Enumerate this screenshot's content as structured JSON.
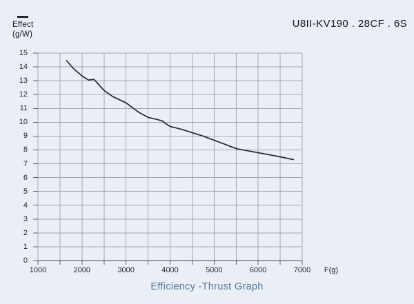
{
  "header": {
    "title": "U8II-KV190 . 28CF . 6S"
  },
  "legend": {
    "label": "Effect",
    "unit": "(g/W)"
  },
  "caption": {
    "text": "Efficiency -Thrust Graph"
  },
  "colors": {
    "background": "#eaeef5",
    "grid": "#a0a8b6",
    "axis": "#41454d",
    "tick": "#5a616c",
    "label_text": "#23262b",
    "title_text": "#15161a",
    "line": "#26262a",
    "caption": "#56799f"
  },
  "chart_data": {
    "type": "line",
    "title": "Efficiency -Thrust Graph",
    "xlabel": "F(g)",
    "ylabel": "Effect (g/W)",
    "xlim": [
      1000,
      7000
    ],
    "ylim": [
      0,
      15
    ],
    "x_major_tick_step": 1000,
    "x_minor_tick_step": 500,
    "y_tick_step": 1,
    "x_tick_labels": [
      "1000",
      "2000",
      "3000",
      "4000",
      "5000",
      "6000",
      "7000"
    ],
    "y_tick_labels": [
      "0",
      "1",
      "2",
      "3",
      "4",
      "5",
      "6",
      "7",
      "8",
      "9",
      "10",
      "11",
      "12",
      "13",
      "14",
      "15"
    ],
    "grid": true,
    "legend_position": "top-left-outside",
    "series": [
      {
        "name": "Effect (g/W)",
        "points": [
          [
            1650,
            14.45
          ],
          [
            1800,
            13.9
          ],
          [
            2000,
            13.35
          ],
          [
            2150,
            13.05
          ],
          [
            2270,
            13.1
          ],
          [
            2500,
            12.3
          ],
          [
            2700,
            11.85
          ],
          [
            3000,
            11.4
          ],
          [
            3150,
            11.05
          ],
          [
            3300,
            10.7
          ],
          [
            3500,
            10.35
          ],
          [
            3680,
            10.22
          ],
          [
            3820,
            10.1
          ],
          [
            3900,
            9.9
          ],
          [
            4000,
            9.7
          ],
          [
            4250,
            9.5
          ],
          [
            4500,
            9.25
          ],
          [
            4750,
            9.0
          ],
          [
            5000,
            8.7
          ],
          [
            5250,
            8.4
          ],
          [
            5520,
            8.08
          ],
          [
            6000,
            7.8
          ],
          [
            6500,
            7.5
          ],
          [
            6800,
            7.3
          ]
        ]
      }
    ]
  }
}
